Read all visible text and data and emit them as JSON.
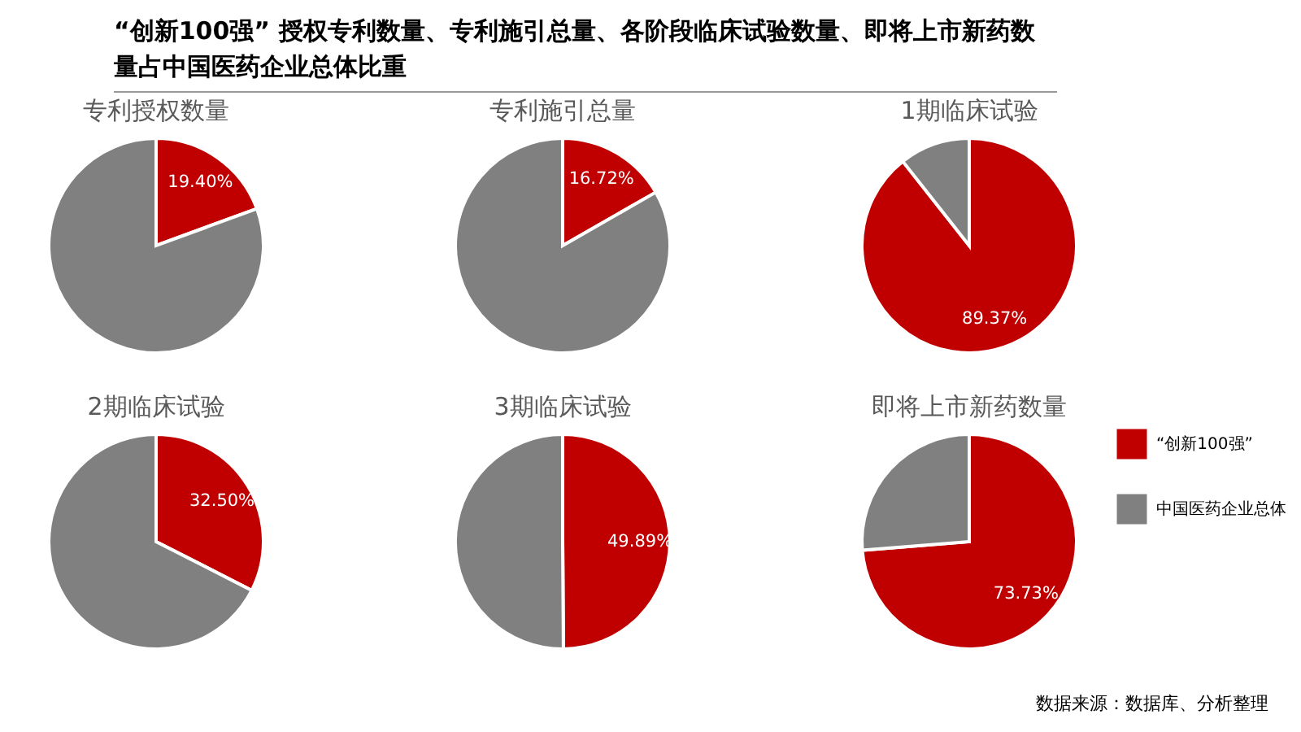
{
  "chart_data": [
    {
      "type": "other",
      "title": "“创新100强” 授权专利数量、专利施引总量、各阶段临床试验数量、即将上市新药数量占中国医药企业总体比重"
    },
    {
      "type": "pie",
      "title": "专利授权数量",
      "categories": [
        null,
        null
      ],
      "values": [
        19.4,
        80.6
      ],
      "colors": [
        "#c00000",
        "#808080"
      ],
      "value_labels": [
        "19.40%",
        null
      ]
    },
    {
      "type": "pie",
      "title": "专利施引总量",
      "categories": [
        null,
        null
      ],
      "values": [
        16.72,
        83.28
      ],
      "colors": [
        "#c00000",
        "#808080"
      ],
      "value_labels": [
        "16.72%",
        null
      ]
    },
    {
      "type": "pie",
      "title": "1期临床试验",
      "categories": [
        null,
        null
      ],
      "values": [
        89.37,
        10.63
      ],
      "colors": [
        "#c00000",
        "#808080"
      ],
      "value_labels": [
        "89.37%",
        null
      ]
    },
    {
      "type": "pie",
      "title": "2期临床试验",
      "categories": [
        null,
        null
      ],
      "values": [
        32.5,
        67.5
      ],
      "colors": [
        "#c00000",
        "#808080"
      ],
      "value_labels": [
        "32.50%",
        null
      ]
    },
    {
      "type": "pie",
      "title": "3期临床试验",
      "categories": [
        null,
        null
      ],
      "values": [
        49.89,
        50.11
      ],
      "colors": [
        "#c00000",
        "#808080"
      ],
      "value_labels": [
        "49.89%",
        null
      ]
    },
    {
      "type": "pie",
      "title": "即将上市新药数量",
      "categories": [
        "“创新100强”",
        "中国医药企业总体"
      ],
      "values": [
        73.73,
        26.27
      ],
      "colors": [
        "#c00000",
        "#808080"
      ],
      "value_labels": [
        "73.73%",
        null
      ],
      "legend": "right",
      "annotations": [
        "数据来源：数据库、分析整理"
      ]
    }
  ]
}
